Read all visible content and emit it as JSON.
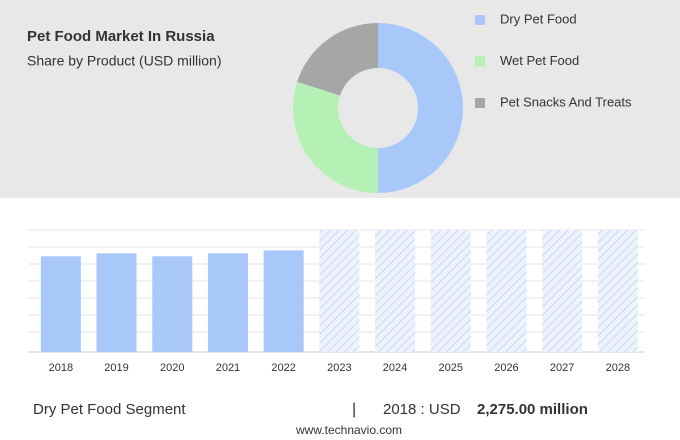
{
  "chart_data": [
    {
      "type": "pie",
      "title": "Pet Food Market In Russia",
      "subtitle": "Share by Product (USD million)",
      "categories": [
        "Dry Pet Food",
        "Wet Pet Food",
        "Pet Snacks And Treats"
      ],
      "values": [
        50,
        30,
        20
      ],
      "colors": [
        "#a8c8fa",
        "#b5f0b5",
        "#a6a6a6"
      ]
    },
    {
      "type": "bar",
      "categories": [
        "2018",
        "2019",
        "2020",
        "2021",
        "2022",
        "2023",
        "2024",
        "2025",
        "2026",
        "2027",
        "2028"
      ],
      "values": [
        2275,
        2346,
        2275,
        2346,
        2417,
        null,
        null,
        null,
        null,
        null,
        null
      ],
      "color": "#a8c8fa",
      "ylim": [
        0,
        2900
      ]
    }
  ],
  "footer": {
    "segment": "Dry Pet Food Segment",
    "separator": "|",
    "prefix": "2018 : USD",
    "value": "2,275.00 million",
    "website": "www.technavio.com"
  }
}
